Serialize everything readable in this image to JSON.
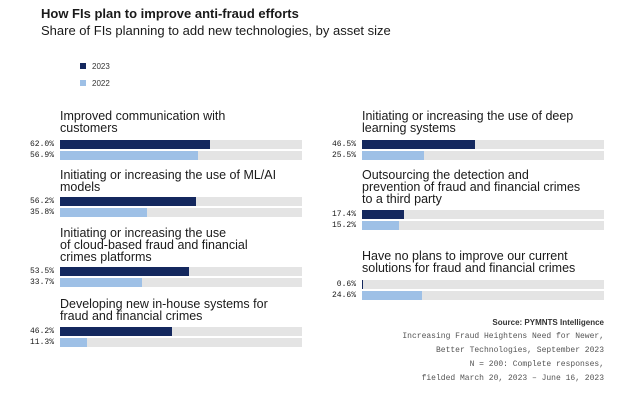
{
  "title": "How FIs plan to improve anti-fraud efforts",
  "subtitle": "Share of FIs planning to add new technologies, by asset size",
  "legend": [
    {
      "label": "2023",
      "color": "#14285e"
    },
    {
      "label": "2022",
      "color": "#9ec0e6"
    }
  ],
  "source": {
    "head": "Source: PYMNTS Intelligence",
    "line1": "Increasing Fraud Heightens Need for Newer,",
    "line2": "Better Technologies, September 2023",
    "line3": "N = 200: Complete responses,",
    "line4": "fielded March 20, 2023 – June 16, 2023"
  },
  "chart_data": {
    "type": "bar",
    "orientation": "horizontal",
    "title": "How FIs plan to improve anti-fraud efforts",
    "subtitle": "Share of FIs planning to add new technologies, by asset size",
    "xlim": [
      0,
      100
    ],
    "categories": [
      "Improved communication with customers",
      "Initiating or increasing the use of ML/AI models",
      "Initiating or increasing the use of cloud-based fraud and financial crimes platforms",
      "Developing new in-house systems for fraud and financial crimes",
      "Initiating or increasing the use of deep learning systems",
      "Outsourcing the detection and prevention of fraud and financial crimes to a third party",
      "Have no plans to improve our current solutions for fraud and financial crimes"
    ],
    "series": [
      {
        "name": "2023",
        "color": "#14285e",
        "values": [
          62.0,
          56.2,
          53.5,
          46.2,
          46.5,
          17.4,
          0.6
        ],
        "labels": [
          "62.0%",
          "56.2%",
          "53.5%",
          "46.2%",
          "46.5%",
          "17.4%",
          "0.6%"
        ]
      },
      {
        "name": "2022",
        "color": "#9ec0e6",
        "values": [
          56.9,
          35.8,
          33.7,
          11.3,
          25.5,
          15.2,
          24.6
        ],
        "labels": [
          "56.9%",
          "35.8%",
          "33.7%",
          "11.3%",
          "25.5%",
          "15.2%",
          "24.6%"
        ]
      }
    ],
    "display_labels": [
      "Improved communication with\ncustomers",
      "Initiating or increasing the use of ML/AI\nmodels",
      "Initiating or increasing the use\nof cloud-based fraud and financial\ncrimes platforms",
      "Developing new in-house systems for\nfraud and financial crimes",
      "Initiating or increasing the use of deep\nlearning systems",
      "Outsourcing the detection and\nprevention of fraud and financial crimes\nto a third party",
      "Have no plans to improve our current\nsolutions for fraud and financial crimes"
    ],
    "legend_position": "top-left",
    "grid": false
  }
}
